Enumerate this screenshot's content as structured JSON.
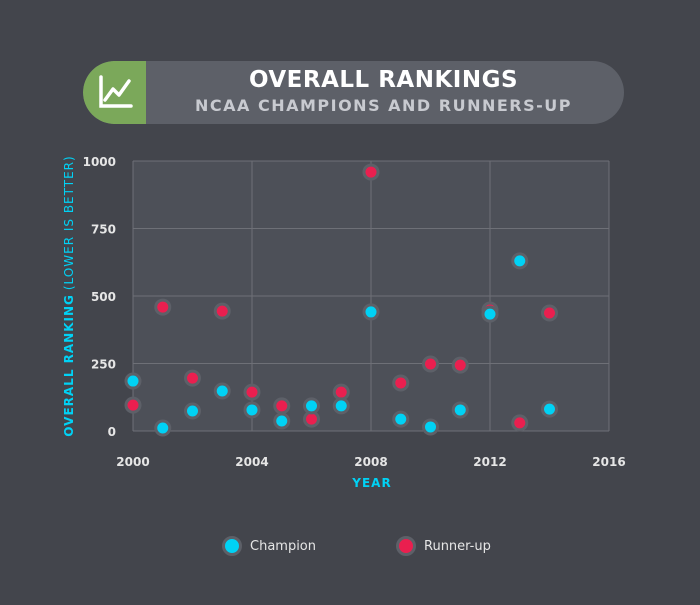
{
  "header": {
    "title": "OVERALL RANKINGS",
    "subtitle": "NCAA CHAMPIONS AND RUNNERS-UP",
    "icon": "line-chart-icon"
  },
  "chart_data": {
    "type": "scatter",
    "xlabel": "YEAR",
    "ylabel_main": "OVERALL RANKING",
    "ylabel_note": "(LOWER IS BETTER)",
    "xlim": [
      2000,
      2016
    ],
    "ylim": [
      0,
      1000
    ],
    "xticks": [
      2000,
      2004,
      2008,
      2012,
      2016
    ],
    "yticks": [
      0,
      250,
      500,
      750,
      1000
    ],
    "grid": true,
    "legend_position": "bottom",
    "x": [
      2000,
      2001,
      2002,
      2003,
      2004,
      2005,
      2006,
      2007,
      2008,
      2009,
      2010,
      2011,
      2012,
      2013,
      2014
    ],
    "series": [
      {
        "name": "Champion",
        "color": "#00d2f5",
        "values": [
          185,
          11,
          74,
          148,
          78,
          37,
          93,
          93,
          441,
          44,
          15,
          78,
          433,
          630,
          81
        ]
      },
      {
        "name": "Runner-up",
        "color": "#ea1f4f",
        "values": [
          96,
          459,
          196,
          444,
          144,
          93,
          44,
          144,
          959,
          178,
          248,
          244,
          448,
          30,
          437
        ]
      }
    ]
  }
}
